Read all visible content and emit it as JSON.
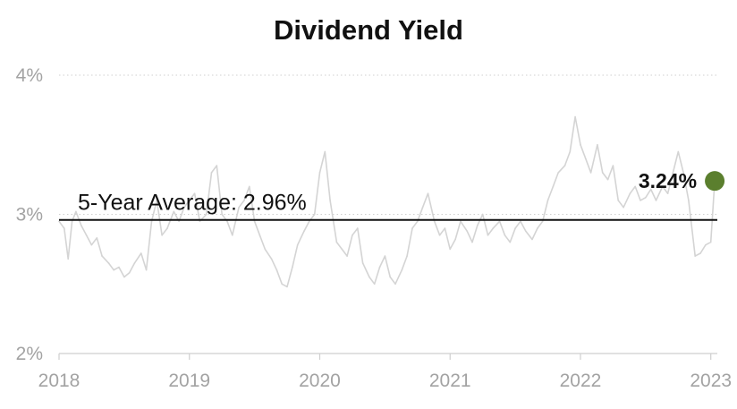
{
  "colors": {
    "series": "#d4d4d4",
    "average_line": "#111111",
    "last_point": "#5b7f2e",
    "grid": "#cfcfcf",
    "tick_text": "#a3a3a3"
  },
  "chart_data": {
    "type": "line",
    "title": "Dividend Yield",
    "xlabel": "",
    "ylabel": "",
    "y_unit": "%",
    "ylim": [
      2,
      4
    ],
    "y_ticks": [
      {
        "value": 2,
        "label": "2%"
      },
      {
        "value": 3,
        "label": "3%"
      },
      {
        "value": 4,
        "label": "4%"
      }
    ],
    "xlim": [
      2018.0,
      2023.05
    ],
    "x_ticks": [
      {
        "value": 2018,
        "label": "2018"
      },
      {
        "value": 2019,
        "label": "2019"
      },
      {
        "value": 2020,
        "label": "2020"
      },
      {
        "value": 2021,
        "label": "2021"
      },
      {
        "value": 2022,
        "label": "2022"
      },
      {
        "value": 2023,
        "label": "2023"
      }
    ],
    "grid": true,
    "series": [
      {
        "x": [
          2018.0,
          2018.04,
          2018.07,
          2018.1,
          2018.13,
          2018.17,
          2018.21,
          2018.25,
          2018.29,
          2018.33,
          2018.38,
          2018.42,
          2018.46,
          2018.5,
          2018.54,
          2018.58,
          2018.63,
          2018.67,
          2018.71,
          2018.75,
          2018.79,
          2018.83,
          2018.88,
          2018.92,
          2018.96,
          2019.0,
          2019.04,
          2019.08,
          2019.13,
          2019.17,
          2019.21,
          2019.25,
          2019.29,
          2019.33,
          2019.38,
          2019.42,
          2019.46,
          2019.5,
          2019.54,
          2019.58,
          2019.63,
          2019.67,
          2019.71,
          2019.75,
          2019.79,
          2019.83,
          2019.88,
          2019.92,
          2019.96,
          2020.0,
          2020.04,
          2020.08,
          2020.13,
          2020.17,
          2020.21,
          2020.25,
          2020.29,
          2020.33,
          2020.38,
          2020.42,
          2020.46,
          2020.5,
          2020.54,
          2020.58,
          2020.63,
          2020.67,
          2020.71,
          2020.75,
          2020.79,
          2020.83,
          2020.88,
          2020.92,
          2020.96,
          2021.0,
          2021.04,
          2021.08,
          2021.13,
          2021.17,
          2021.21,
          2021.25,
          2021.29,
          2021.33,
          2021.38,
          2021.42,
          2021.46,
          2021.5,
          2021.54,
          2021.58,
          2021.63,
          2021.67,
          2021.71,
          2021.75,
          2021.79,
          2021.83,
          2021.88,
          2021.92,
          2021.96,
          2022.0,
          2022.04,
          2022.08,
          2022.13,
          2022.17,
          2022.21,
          2022.25,
          2022.29,
          2022.33,
          2022.38,
          2022.42,
          2022.46,
          2022.5,
          2022.54,
          2022.58,
          2022.63,
          2022.67,
          2022.71,
          2022.75,
          2022.79,
          2022.83,
          2022.88,
          2022.92,
          2022.96,
          2023.0,
          2023.03
        ],
        "values": [
          2.95,
          2.9,
          2.68,
          2.95,
          3.02,
          2.92,
          2.85,
          2.78,
          2.83,
          2.7,
          2.65,
          2.6,
          2.62,
          2.55,
          2.58,
          2.65,
          2.72,
          2.6,
          2.95,
          3.1,
          2.85,
          2.9,
          3.02,
          2.95,
          3.05,
          3.1,
          3.15,
          2.95,
          3.0,
          3.3,
          3.35,
          3.0,
          2.95,
          2.85,
          3.05,
          3.1,
          3.2,
          2.95,
          2.85,
          2.75,
          2.68,
          2.6,
          2.5,
          2.48,
          2.62,
          2.78,
          2.88,
          2.95,
          3.0,
          3.3,
          3.45,
          3.1,
          2.8,
          2.75,
          2.7,
          2.85,
          2.9,
          2.65,
          2.55,
          2.5,
          2.62,
          2.7,
          2.55,
          2.5,
          2.6,
          2.7,
          2.9,
          2.95,
          3.05,
          3.15,
          2.95,
          2.85,
          2.9,
          2.75,
          2.82,
          2.95,
          2.88,
          2.8,
          2.92,
          3.0,
          2.85,
          2.9,
          2.95,
          2.85,
          2.8,
          2.9,
          2.95,
          2.88,
          2.82,
          2.9,
          2.95,
          3.1,
          3.2,
          3.3,
          3.35,
          3.45,
          3.7,
          3.5,
          3.4,
          3.3,
          3.5,
          3.3,
          3.25,
          3.35,
          3.1,
          3.05,
          3.15,
          3.2,
          3.1,
          3.12,
          3.18,
          3.1,
          3.2,
          3.15,
          3.3,
          3.45,
          3.3,
          3.1,
          2.7,
          2.72,
          2.78,
          2.8,
          3.24
        ]
      }
    ],
    "average": {
      "value": 2.96,
      "label": "5-Year Average: 2.96%"
    },
    "last_point": {
      "x": 2023.03,
      "value": 3.24,
      "label": "3.24%"
    }
  }
}
